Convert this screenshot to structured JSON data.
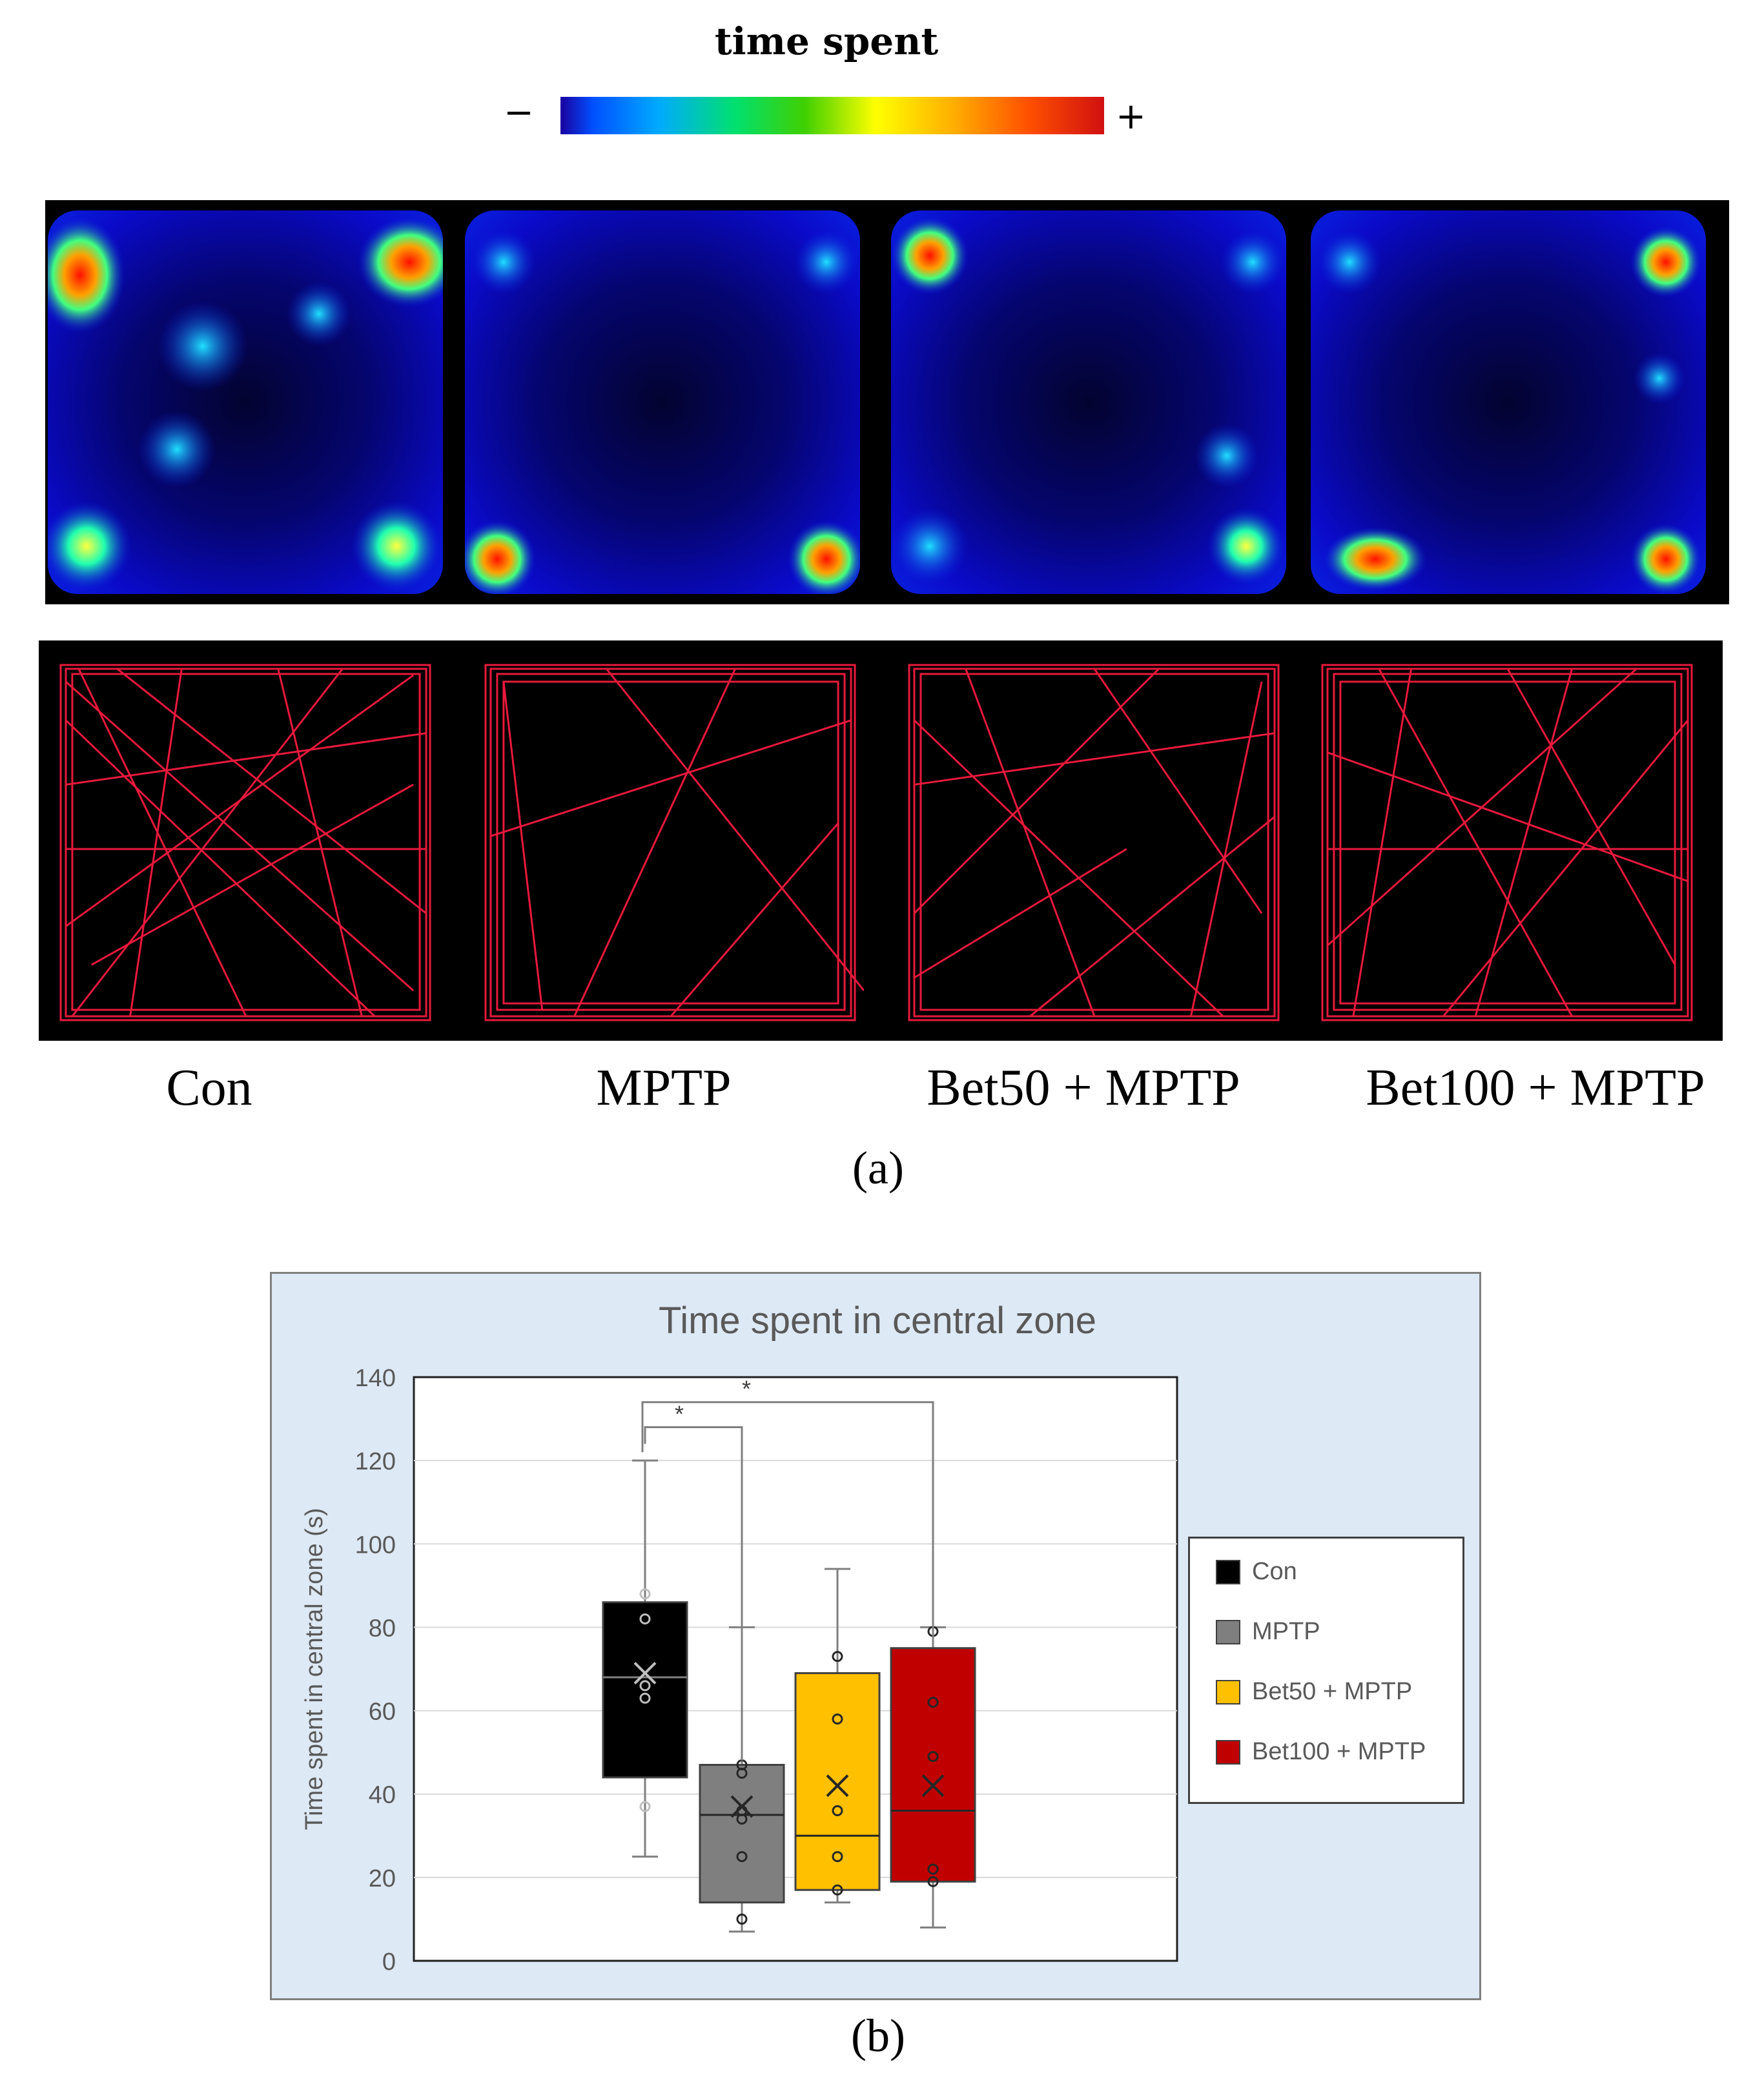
{
  "colorbar": {
    "title": "time spent",
    "minus": "−",
    "plus": "+"
  },
  "groups": [
    "Con",
    "MPTP",
    "Bet50 + MPTP",
    "Bet100 + MPTP"
  ],
  "panel_labels": {
    "a": "(a)",
    "b": "(b)"
  },
  "colors": {
    "con": "#000000",
    "mptp": "#7f7f7f",
    "bet50": "#ffc000",
    "bet100": "#c00000",
    "track": "#e8193c",
    "chart_bg": "#dde9f5"
  },
  "chart_data": {
    "type": "box",
    "title": "Time spent in central zone",
    "ylabel": "Time spent in  central zone (s)",
    "ylim": [
      0,
      140
    ],
    "yticks": [
      0,
      20,
      40,
      60,
      80,
      100,
      120,
      140
    ],
    "grid": true,
    "legend_position": "right",
    "series": [
      {
        "name": "Con",
        "color": "#000000",
        "min": 25,
        "q1": 44,
        "median": 68,
        "q3": 86,
        "max": 120,
        "mean": 69,
        "points": [
          88,
          82,
          66,
          63,
          37
        ]
      },
      {
        "name": "MPTP",
        "color": "#7f7f7f",
        "min": 7,
        "q1": 14,
        "median": 35,
        "q3": 47,
        "max": 80,
        "mean": 37,
        "points": [
          47,
          45,
          36,
          34,
          25,
          10
        ]
      },
      {
        "name": "Bet50 + MPTP",
        "color": "#ffc000",
        "min": 14,
        "q1": 17,
        "median": 30,
        "q3": 69,
        "max": 94,
        "mean": 42,
        "points": [
          73,
          58,
          36,
          25,
          17
        ]
      },
      {
        "name": "Bet100 + MPTP",
        "color": "#c00000",
        "min": 8,
        "q1": 19,
        "median": 36,
        "q3": 75,
        "max": 80,
        "mean": 42,
        "points": [
          79,
          62,
          49,
          22,
          19
        ]
      }
    ],
    "significance": [
      {
        "from": "Con",
        "to": "MPTP",
        "label": "*"
      },
      {
        "from": "Con",
        "to": "Bet100 + MPTP",
        "label": "*"
      }
    ]
  }
}
